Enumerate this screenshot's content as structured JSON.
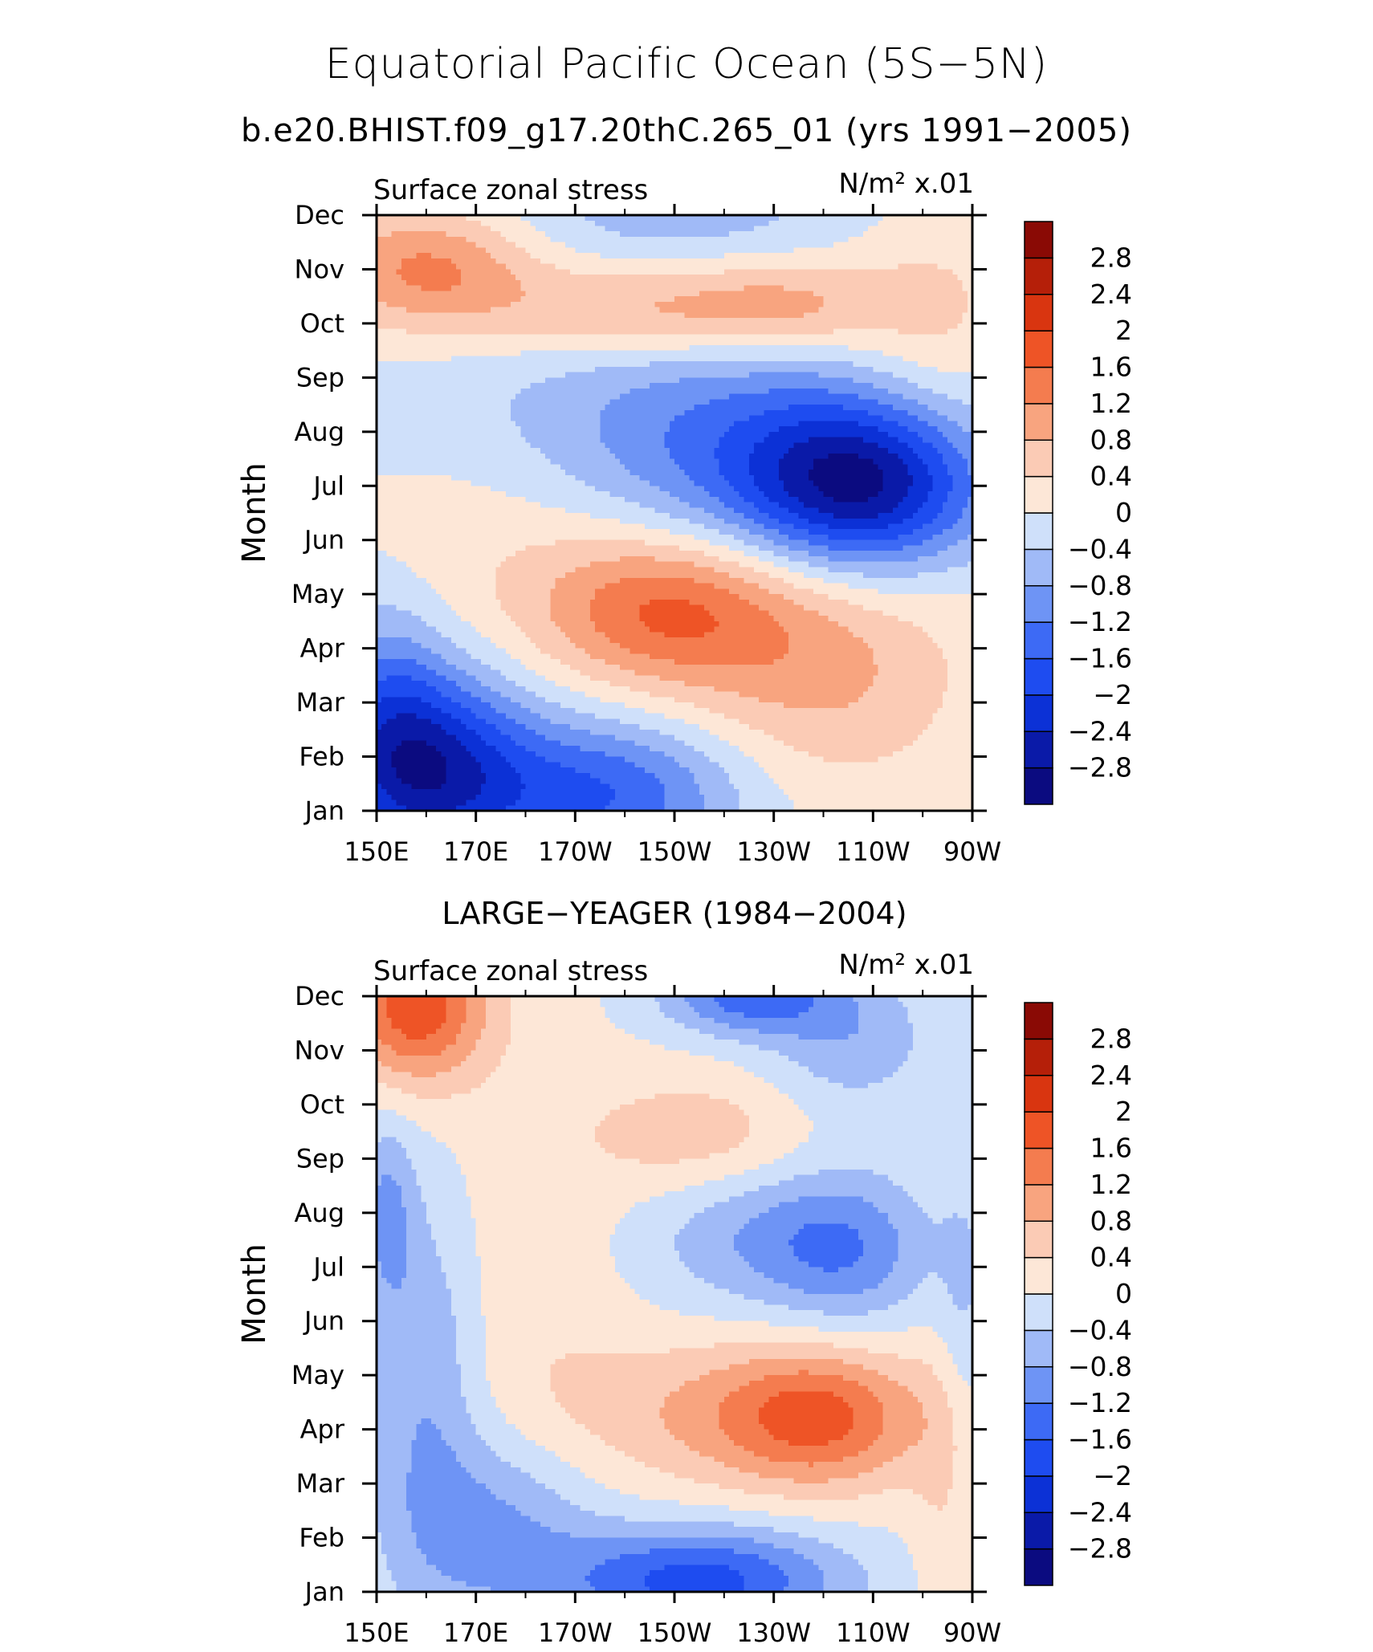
{
  "title": "Equatorial Pacific Ocean (5S−5N)",
  "subtitle": "b.e20.BHIST.f09_g17.20thC.265_01 (yrs 1991−2005)",
  "chart_data": [
    {
      "type": "heatmap",
      "panel_title": "",
      "left_label": "Surface zonal stress",
      "right_label": "N/m² x.01",
      "ylabel": "Month",
      "x_ticks": [
        "150E",
        "170E",
        "170W",
        "150W",
        "130W",
        "110W",
        "90W"
      ],
      "x_values": [
        150,
        170,
        190,
        210,
        230,
        250,
        270
      ],
      "y_ticks": [
        "Jan",
        "Feb",
        "Mar",
        "Apr",
        "May",
        "Jun",
        "Jul",
        "Aug",
        "Sep",
        "Oct",
        "Nov",
        "Dec"
      ],
      "xlim": [
        150,
        270
      ],
      "ylim": [
        1,
        12
      ],
      "levels": [
        "−2.8",
        "−2.4",
        "−2",
        "−1.6",
        "−1.2",
        "−0.8",
        "−0.4",
        "0",
        "0.4",
        "0.8",
        "1.2",
        "1.6",
        "2",
        "2.4",
        "2.8"
      ],
      "features": [
        {
          "x": 160,
          "y": 1.8,
          "v": -2.3,
          "sx": 14,
          "sy": 1.3
        },
        {
          "x": 195,
          "y": 1.3,
          "v": -1.6,
          "sx": 20,
          "sy": 1.0
        },
        {
          "x": 152,
          "y": 3.0,
          "v": -0.8,
          "sx": 8,
          "sy": 1.5
        },
        {
          "x": 208,
          "y": 4.7,
          "v": 1.5,
          "sx": 18,
          "sy": 1.0
        },
        {
          "x": 240,
          "y": 3.7,
          "v": 0.9,
          "sx": 20,
          "sy": 1.6
        },
        {
          "x": 180,
          "y": 6.0,
          "v": 0.35,
          "sx": 25,
          "sy": 1.5
        },
        {
          "x": 248,
          "y": 7.0,
          "v": -2.6,
          "sx": 17,
          "sy": 1.1
        },
        {
          "x": 218,
          "y": 7.5,
          "v": -1.0,
          "sx": 25,
          "sy": 1.4
        },
        {
          "x": 200,
          "y": 8.6,
          "v": -0.35,
          "sx": 40,
          "sy": 1.2
        },
        {
          "x": 160,
          "y": 11.0,
          "v": 1.3,
          "sx": 15,
          "sy": 0.8
        },
        {
          "x": 200,
          "y": 10.2,
          "v": 0.9,
          "sx": 20,
          "sy": 0.6
        },
        {
          "x": 232,
          "y": 10.3,
          "v": 0.9,
          "sx": 15,
          "sy": 0.6
        },
        {
          "x": 262,
          "y": 10.0,
          "v": 0.5,
          "sx": 12,
          "sy": 1.5
        },
        {
          "x": 210,
          "y": 12.0,
          "v": -0.6,
          "sx": 25,
          "sy": 0.6
        }
      ]
    },
    {
      "type": "heatmap",
      "panel_title": "LARGE−YEAGER (1984−2004)",
      "left_label": "Surface zonal stress",
      "right_label": "N/m² x.01",
      "ylabel": "Month",
      "x_ticks": [
        "150E",
        "170E",
        "170W",
        "150W",
        "130W",
        "110W",
        "90W"
      ],
      "x_values": [
        150,
        170,
        190,
        210,
        230,
        250,
        270
      ],
      "y_ticks": [
        "Jan",
        "Feb",
        "Mar",
        "Apr",
        "May",
        "Jun",
        "Jul",
        "Aug",
        "Sep",
        "Oct",
        "Nov",
        "Dec"
      ],
      "xlim": [
        150,
        270
      ],
      "ylim": [
        1,
        12
      ],
      "levels": [
        "−2.8",
        "−2.4",
        "−2",
        "−1.6",
        "−1.2",
        "−0.8",
        "−0.4",
        "0",
        "0.4",
        "0.8",
        "1.2",
        "1.6",
        "2",
        "2.4",
        "2.8"
      ],
      "features": [
        {
          "x": 158,
          "y": 11.8,
          "v": 1.9,
          "sx": 10,
          "sy": 1.0
        },
        {
          "x": 215,
          "y": 1.2,
          "v": -1.8,
          "sx": 20,
          "sy": 0.7
        },
        {
          "x": 175,
          "y": 2.2,
          "v": -1.0,
          "sx": 14,
          "sy": 1.3
        },
        {
          "x": 160,
          "y": 5.0,
          "v": -0.8,
          "sx": 8,
          "sy": 2.5
        },
        {
          "x": 152,
          "y": 8.0,
          "v": -0.8,
          "sx": 4,
          "sy": 1.2
        },
        {
          "x": 240,
          "y": 4.2,
          "v": 1.3,
          "sx": 14,
          "sy": 0.9
        },
        {
          "x": 220,
          "y": 4.3,
          "v": 0.8,
          "sx": 24,
          "sy": 1.0
        },
        {
          "x": 215,
          "y": 9.4,
          "v": 0.7,
          "sx": 16,
          "sy": 0.8
        },
        {
          "x": 245,
          "y": 7.3,
          "v": -1.0,
          "sx": 12,
          "sy": 1.0
        },
        {
          "x": 225,
          "y": 7.6,
          "v": -0.7,
          "sx": 16,
          "sy": 1.0
        },
        {
          "x": 225,
          "y": 12.0,
          "v": -1.4,
          "sx": 12,
          "sy": 0.5
        },
        {
          "x": 245,
          "y": 11.2,
          "v": -0.7,
          "sx": 12,
          "sy": 0.9
        },
        {
          "x": 265,
          "y": 2.5,
          "v": 0.4,
          "sx": 5,
          "sy": 3.0
        },
        {
          "x": 268,
          "y": 6.0,
          "v": -0.5,
          "sx": 4,
          "sy": 2.0
        },
        {
          "x": 180,
          "y": 6.0,
          "v": 0.3,
          "sx": 14,
          "sy": 4.0
        }
      ]
    }
  ],
  "colorbar_colors": [
    "#0b0b80",
    "#0a1aa8",
    "#0c31d6",
    "#1e4cf0",
    "#3d6af5",
    "#6e94f5",
    "#a0baf7",
    "#cfe0fa",
    "#fde7d7",
    "#fbcbb5",
    "#f8a47f",
    "#f47c4f",
    "#ee5426",
    "#d93510",
    "#b51f09",
    "#8a0a05"
  ]
}
